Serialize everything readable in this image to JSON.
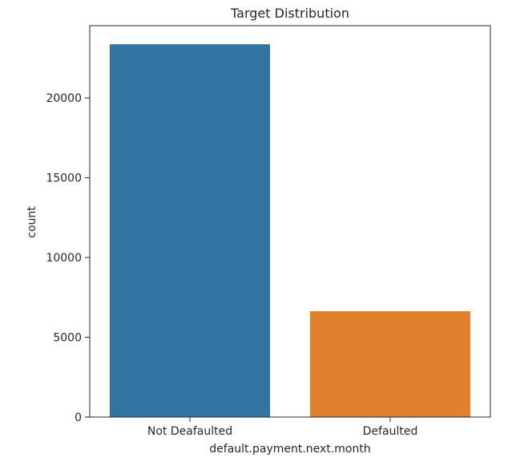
{
  "chart_data": {
    "type": "bar",
    "title": "Target Distribution",
    "xlabel": "default.payment.next.month",
    "ylabel": "count",
    "categories": [
      "Not Deafaulted",
      "Defaulted"
    ],
    "values": [
      23364,
      6636
    ],
    "ylim": [
      0,
      24530
    ],
    "yticks": [
      0,
      5000,
      10000,
      15000,
      20000
    ],
    "ytick_labels": [
      "0",
      "5000",
      "10000",
      "15000",
      "20000"
    ],
    "colors": [
      "#3274a1",
      "#e1812c"
    ],
    "grid": false,
    "legend": "none"
  }
}
